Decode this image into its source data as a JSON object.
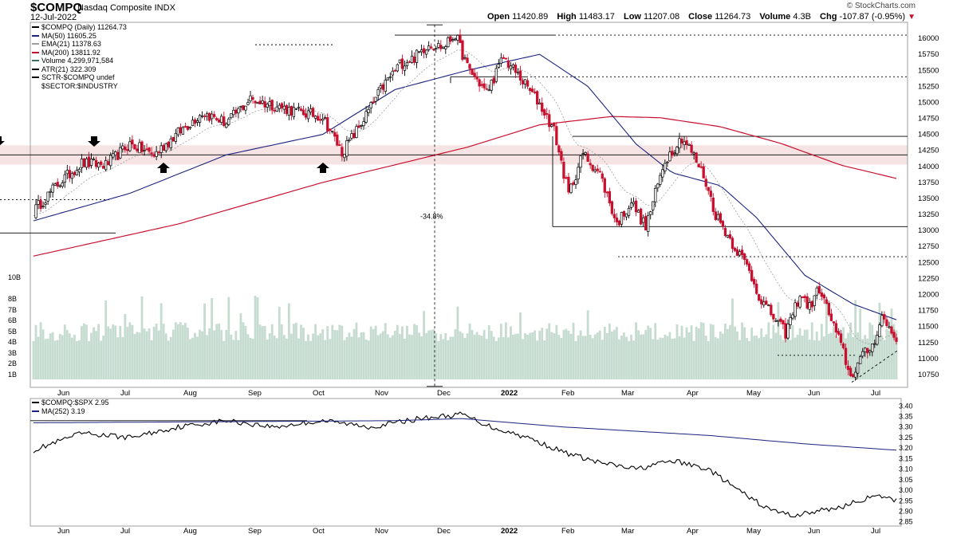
{
  "header": {
    "symbol": "$COMPQ",
    "name": "Nasdaq Composite",
    "exchange": "INDX",
    "date": "12-Jul-2022",
    "open_label": "Open",
    "open": "11420.89",
    "high_label": "High",
    "high": "11483.17",
    "low_label": "Low",
    "low": "11207.08",
    "close_label": "Close",
    "close": "11264.73",
    "volume_label": "Volume",
    "volume": "4.3B",
    "chg_label": "Chg",
    "chg": "-107.87 (-0.95%)",
    "brand": "© StockCharts.com"
  },
  "legend": [
    {
      "text": "$COMPQ (Daily) 11264.73",
      "color": "#000000"
    },
    {
      "text": "MA(50) 11605.25",
      "color": "#1a237e"
    },
    {
      "text": "EMA(21) 11378.63",
      "color": "#9e9e9e"
    },
    {
      "text": "MA(200) 13811.92",
      "color": "#c8102e"
    },
    {
      "text": "Volume 4,299,971,584",
      "color": "#3c6e5a"
    },
    {
      "text": "ATR(21) 322.309",
      "color": "#000000"
    },
    {
      "text": "SCTR-$COMPQ undef",
      "color": "#000000"
    },
    {
      "text": "$SECTOR:$INDUSTRY",
      "color": "#000000"
    }
  ],
  "annotation_drop": "-34.8%",
  "lower_legend": [
    {
      "text": "$COMPQ:$SPX 2.95",
      "color": "#000000"
    },
    {
      "text": "MA(252) 3.19",
      "color": "#1a237e"
    }
  ],
  "colors": {
    "up": "#000000",
    "down": "#c8102e",
    "ma50": "#1a237e",
    "ma200": "#c8102e",
    "ema21": "#9e9e9e",
    "volume": "#c6dcd0",
    "sr_band": "#f6e4e4"
  },
  "chart_data": [
    {
      "type": "candlestick",
      "title": "$COMPQ Nasdaq Composite INDX",
      "x_labels": [
        "Jun",
        "Jul",
        "Aug",
        "Sep",
        "Oct",
        "Nov",
        "Dec",
        "2022",
        "Feb",
        "Mar",
        "Apr",
        "May",
        "Jun",
        "Jul"
      ],
      "y_ticks": [
        10750,
        11000,
        11250,
        11500,
        11750,
        12000,
        12250,
        12500,
        12750,
        13000,
        13250,
        13500,
        13750,
        14000,
        14250,
        14500,
        14750,
        15000,
        15250,
        15500,
        15750,
        16000
      ],
      "ylim": [
        10550,
        16250
      ],
      "volume_ticks": [
        "1B",
        "2B",
        "3B",
        "4B",
        "5B",
        "6B",
        "7B",
        "8B",
        "10B"
      ],
      "close_anchors": [
        [
          0,
          13300
        ],
        [
          10,
          13720
        ],
        [
          20,
          14050
        ],
        [
          30,
          14020
        ],
        [
          40,
          14350
        ],
        [
          50,
          14180
        ],
        [
          60,
          14520
        ],
        [
          70,
          14840
        ],
        [
          80,
          14680
        ],
        [
          90,
          15050
        ],
        [
          100,
          14950
        ],
        [
          110,
          14850
        ],
        [
          120,
          14780
        ],
        [
          128,
          14220
        ],
        [
          135,
          14610
        ],
        [
          145,
          15250
        ],
        [
          152,
          15600
        ],
        [
          158,
          15700
        ],
        [
          164,
          15920
        ],
        [
          170,
          15860
        ],
        [
          175,
          16060
        ],
        [
          180,
          15550
        ],
        [
          188,
          15150
        ],
        [
          195,
          15700
        ],
        [
          202,
          15380
        ],
        [
          210,
          14980
        ],
        [
          216,
          14560
        ],
        [
          222,
          13560
        ],
        [
          228,
          14200
        ],
        [
          235,
          13880
        ],
        [
          242,
          13100
        ],
        [
          248,
          13450
        ],
        [
          254,
          13050
        ],
        [
          262,
          14100
        ],
        [
          269,
          14450
        ],
        [
          272,
          14300
        ],
        [
          278,
          13860
        ],
        [
          283,
          13250
        ],
        [
          290,
          12800
        ],
        [
          296,
          12450
        ],
        [
          302,
          11900
        ],
        [
          306,
          11700
        ],
        [
          312,
          11400
        ],
        [
          318,
          12000
        ],
        [
          322,
          11800
        ],
        [
          326,
          12100
        ],
        [
          331,
          11600
        ],
        [
          336,
          11100
        ],
        [
          339,
          10700
        ],
        [
          343,
          11000
        ],
        [
          348,
          11200
        ],
        [
          352,
          11650
        ],
        [
          356,
          11420
        ],
        [
          358,
          11265
        ]
      ],
      "ma50_anchors": [
        [
          0,
          13150
        ],
        [
          40,
          13580
        ],
        [
          80,
          14180
        ],
        [
          120,
          14500
        ],
        [
          150,
          15200
        ],
        [
          180,
          15500
        ],
        [
          210,
          15750
        ],
        [
          230,
          15250
        ],
        [
          250,
          14350
        ],
        [
          265,
          13900
        ],
        [
          285,
          13700
        ],
        [
          300,
          13200
        ],
        [
          320,
          12300
        ],
        [
          340,
          11850
        ],
        [
          358,
          11605
        ]
      ],
      "ma200_anchors": [
        [
          0,
          12600
        ],
        [
          60,
          13100
        ],
        [
          120,
          13750
        ],
        [
          180,
          14300
        ],
        [
          210,
          14650
        ],
        [
          240,
          14780
        ],
        [
          260,
          14760
        ],
        [
          285,
          14620
        ],
        [
          310,
          14360
        ],
        [
          335,
          14020
        ],
        [
          358,
          13812
        ]
      ],
      "support_resistance_levels": [
        16050,
        14470,
        14180,
        13060,
        12590,
        11050,
        15900,
        15400,
        13480,
        12960
      ],
      "drop_annotation": {
        "text": "-34.8%",
        "from": 16210,
        "to": 10565
      },
      "volume_values_billions": [
        3.6,
        4.2,
        4.9,
        6.2,
        4.0,
        3.7,
        7.3,
        3.1
      ]
    },
    {
      "type": "line",
      "title": "$COMPQ:$SPX",
      "series": [
        {
          "name": "$COMPQ:$SPX",
          "last": 2.95,
          "anchors": [
            [
              0,
              3.19
            ],
            [
              20,
              3.27
            ],
            [
              40,
              3.25
            ],
            [
              60,
              3.3
            ],
            [
              80,
              3.33
            ],
            [
              100,
              3.3
            ],
            [
              120,
              3.33
            ],
            [
              140,
              3.3
            ],
            [
              160,
              3.34
            ],
            [
              178,
              3.36
            ],
            [
              190,
              3.3
            ],
            [
              205,
              3.25
            ],
            [
              220,
              3.18
            ],
            [
              235,
              3.13
            ],
            [
              250,
              3.1
            ],
            [
              265,
              3.14
            ],
            [
              280,
              3.1
            ],
            [
              295,
              2.98
            ],
            [
              305,
              2.91
            ],
            [
              315,
              2.88
            ],
            [
              325,
              2.9
            ],
            [
              335,
              2.92
            ],
            [
              345,
              2.96
            ],
            [
              352,
              2.97
            ],
            [
              358,
              2.95
            ]
          ]
        },
        {
          "name": "MA(252)",
          "last": 3.19,
          "anchors": [
            [
              0,
              3.32
            ],
            [
              150,
              3.33
            ],
            [
              178,
              3.34
            ],
            [
              220,
              3.3
            ],
            [
              280,
              3.26
            ],
            [
              320,
              3.22
            ],
            [
              358,
              3.19
            ]
          ]
        }
      ],
      "y_ticks": [
        2.85,
        2.9,
        2.95,
        3.0,
        3.05,
        3.1,
        3.15,
        3.2,
        3.25,
        3.3,
        3.35,
        3.4
      ],
      "ylim": [
        2.83,
        3.42
      ],
      "x_labels": [
        "Jun",
        "Jul",
        "Aug",
        "Sep",
        "Oct",
        "Nov",
        "Dec",
        "2022",
        "Feb",
        "Mar",
        "Apr",
        "May",
        "Jun",
        "Jul"
      ]
    }
  ]
}
